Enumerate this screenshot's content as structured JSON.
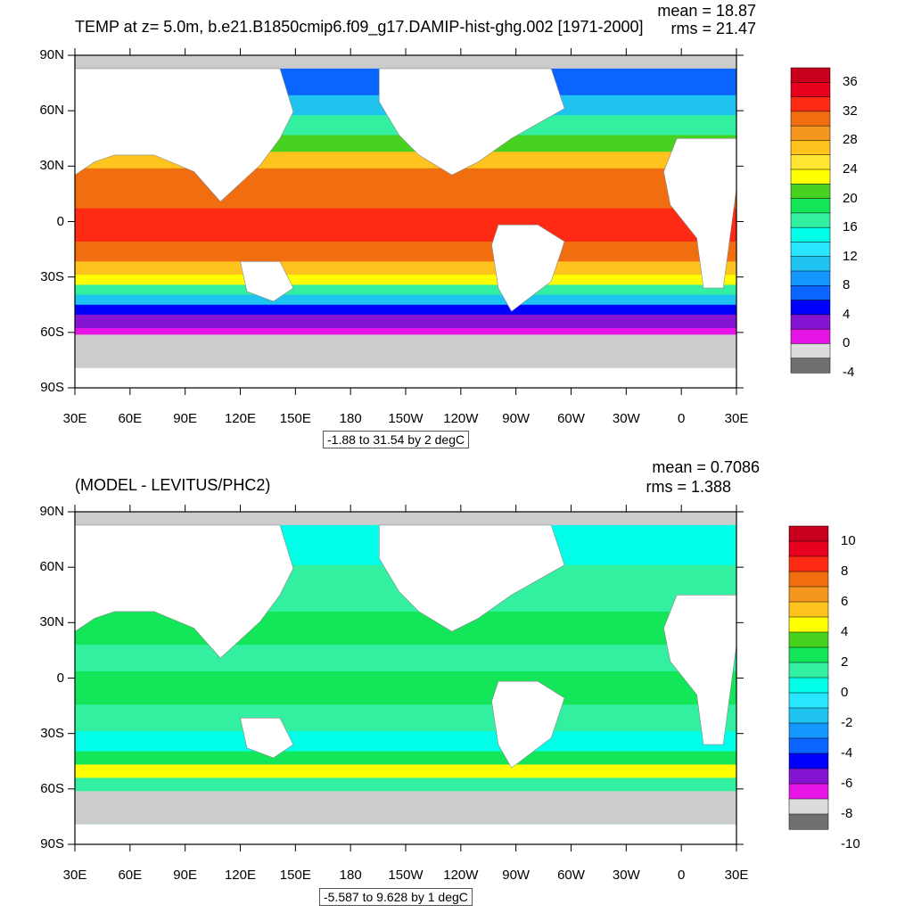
{
  "colors": {
    "land": "#ffffff",
    "ice": "#cccccc",
    "frame": "#000000"
  },
  "axes": {
    "lon_ticks": [
      "30E",
      "60E",
      "90E",
      "120E",
      "150E",
      "180",
      "150W",
      "120W",
      "90W",
      "60W",
      "30W",
      "0",
      "30E"
    ],
    "lat_ticks": [
      "90N",
      "60N",
      "30N",
      "0",
      "30S",
      "60S",
      "90S"
    ]
  },
  "top": {
    "title": "TEMP at z=   5.0m, b.e21.B1850cmip6.f09_g17.DAMIP-hist-ghg.002 [1971-2000]",
    "mean_text": "mean = 18.87",
    "rms_text": "rms = 21.47",
    "range_text": "-1.88 to 31.54 by 2 degC",
    "colorbar": {
      "labels": [
        "36",
        "32",
        "28",
        "24",
        "20",
        "16",
        "12",
        "8",
        "4",
        "0",
        "-4"
      ],
      "colors": [
        "#c8001e",
        "#e6001e",
        "#ff2a14",
        "#f06e0f",
        "#f5961e",
        "#ffc31e",
        "#ffe632",
        "#ffff00",
        "#46d21e",
        "#14e65a",
        "#32f0a0",
        "#00ffe6",
        "#28e6ff",
        "#1ec3f0",
        "#1496ff",
        "#0a64ff",
        "#0000ff",
        "#8214d2",
        "#e614e6",
        "#dcdcdc",
        "#707070"
      ]
    }
  },
  "bottom": {
    "title": "(MODEL - LEVITUS/PHC2)",
    "mean_text": "mean = 0.7086",
    "rms_text": "rms = 1.388",
    "range_text": "-5.587 to 9.628 by 1 degC",
    "colorbar": {
      "labels": [
        "10",
        "8",
        "6",
        "4",
        "2",
        "0",
        "-2",
        "-4",
        "-6",
        "-8",
        "-10"
      ],
      "colors": [
        "#c8001e",
        "#e6001e",
        "#ff2a14",
        "#f06e0f",
        "#f5961e",
        "#ffc31e",
        "#ffff00",
        "#46d21e",
        "#14e65a",
        "#32f0a0",
        "#00ffe6",
        "#28e6ff",
        "#1ec3f0",
        "#1496ff",
        "#0a64ff",
        "#0000ff",
        "#8214d2",
        "#e614e6",
        "#dcdcdc",
        "#707070"
      ]
    }
  }
}
